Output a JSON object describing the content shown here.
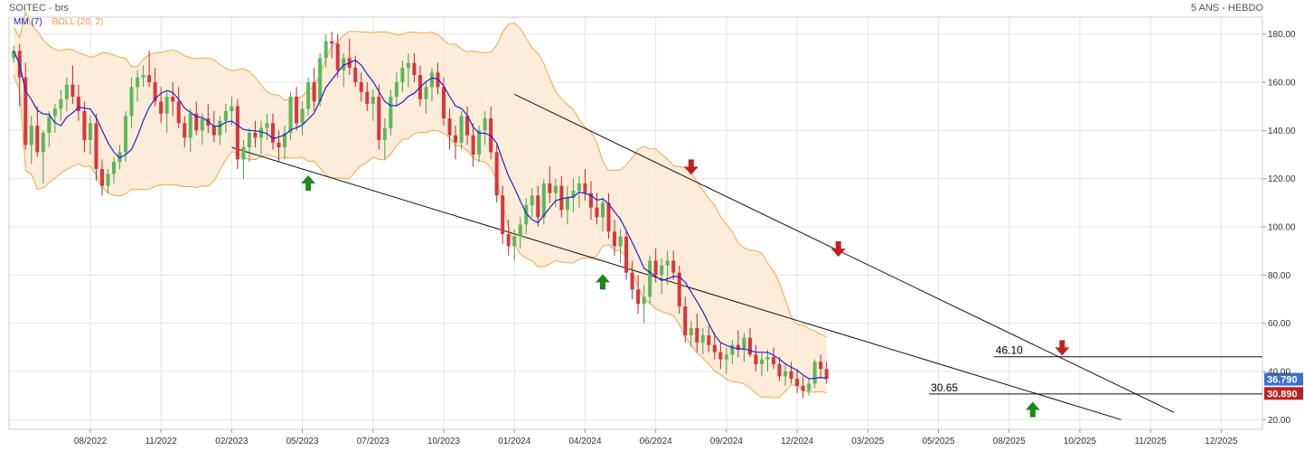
{
  "header": {
    "title": "SOITEC - brs",
    "period": "5 ANS - HEBDO"
  },
  "legend": {
    "ma": "MM (7)",
    "boll": "BOLL (20, 2)"
  },
  "colors": {
    "up": "#5cb85c",
    "down": "#d9363e",
    "ma": "#2020d0",
    "band_fill": "#fde9d4",
    "band_line": "#f0a848",
    "arrow_up": "#1a8a1a",
    "arrow_down": "#c0201e",
    "tag_blue": "#3b6fd6",
    "tag_red": "#c0201e"
  },
  "chart_data": {
    "type": "candlestick",
    "y_ticks": [
      "180.00",
      "160.00",
      "140.00",
      "120.00",
      "100.00",
      "80.00",
      "60.00",
      "40.00",
      "20.00"
    ],
    "y_tick_values": [
      180,
      160,
      140,
      120,
      100,
      80,
      60,
      40,
      20
    ],
    "ylim": [
      16,
      187
    ],
    "x_ticks": [
      "08/2022",
      "11/2022",
      "02/2023",
      "05/2023",
      "07/2023",
      "10/2023",
      "01/2024",
      "04/2024",
      "06/2024",
      "09/2024",
      "12/2024",
      "03/2025",
      "05/2025",
      "08/2025",
      "10/2025",
      "11/2025",
      "12/2025"
    ],
    "x_tick_index": [
      13,
      25,
      37,
      49,
      61,
      73,
      85,
      97,
      109,
      121,
      133,
      145,
      157,
      169,
      181,
      193,
      205
    ],
    "index_range": [
      -0.8,
      212
    ],
    "tags": [
      {
        "label": "36.790",
        "value": 36.79,
        "color": "tag_blue"
      },
      {
        "label": "30.890",
        "value": 30.89,
        "color": "tag_red"
      }
    ],
    "levels": [
      {
        "label": "46.10",
        "value": 46.1,
        "from_index": 171
      },
      {
        "label": "30.65",
        "value": 30.65,
        "from_index": 160
      }
    ],
    "trendlines": [
      {
        "i1": 37,
        "v1": 133,
        "i2": 188,
        "v2": 20
      },
      {
        "i1": 85,
        "v1": 155,
        "i2": 197,
        "v2": 23
      }
    ],
    "arrows": [
      {
        "dir": "up",
        "index": 50,
        "value": 118
      },
      {
        "dir": "up",
        "index": 100,
        "value": 77
      },
      {
        "dir": "down",
        "index": 115,
        "value": 125
      },
      {
        "dir": "down",
        "index": 140,
        "value": 91
      },
      {
        "dir": "up",
        "index": 173,
        "value": 24
      },
      {
        "dir": "down",
        "index": 178,
        "value": 50
      }
    ],
    "candles": [
      [
        170,
        175,
        168,
        173
      ],
      [
        173,
        176,
        150,
        162
      ],
      [
        162,
        168,
        132,
        134
      ],
      [
        134,
        146,
        126,
        142
      ],
      [
        142,
        150,
        129,
        131
      ],
      [
        131,
        140,
        118,
        139
      ],
      [
        139,
        148,
        133,
        146
      ],
      [
        146,
        151,
        139,
        149
      ],
      [
        149,
        157,
        144,
        153
      ],
      [
        153,
        162,
        148,
        159
      ],
      [
        159,
        167,
        151,
        154
      ],
      [
        154,
        159,
        144,
        148
      ],
      [
        148,
        152,
        131,
        136
      ],
      [
        136,
        146,
        130,
        143
      ],
      [
        143,
        147,
        119,
        124
      ],
      [
        124,
        128,
        113,
        117
      ],
      [
        117,
        124,
        114,
        122
      ],
      [
        122,
        129,
        118,
        127
      ],
      [
        127,
        134,
        124,
        131
      ],
      [
        131,
        148,
        127,
        146
      ],
      [
        146,
        162,
        141,
        158
      ],
      [
        158,
        165,
        152,
        162
      ],
      [
        162,
        167,
        158,
        163
      ],
      [
        163,
        173,
        158,
        160
      ],
      [
        160,
        166,
        150,
        152
      ],
      [
        152,
        158,
        143,
        147
      ],
      [
        147,
        156,
        139,
        154
      ],
      [
        154,
        160,
        146,
        152
      ],
      [
        152,
        158,
        141,
        143
      ],
      [
        143,
        146,
        133,
        137
      ],
      [
        137,
        149,
        131,
        147
      ],
      [
        147,
        152,
        138,
        140
      ],
      [
        140,
        147,
        134,
        145
      ],
      [
        145,
        151,
        139,
        142
      ],
      [
        142,
        148,
        135,
        138
      ],
      [
        138,
        146,
        134,
        144
      ],
      [
        144,
        151,
        139,
        148
      ],
      [
        148,
        154,
        142,
        150
      ],
      [
        150,
        153,
        124,
        128
      ],
      [
        128,
        136,
        120,
        133
      ],
      [
        133,
        141,
        127,
        139
      ],
      [
        139,
        144,
        133,
        137
      ],
      [
        137,
        144,
        130,
        141
      ],
      [
        141,
        147,
        136,
        143
      ],
      [
        143,
        147,
        132,
        135
      ],
      [
        135,
        140,
        127,
        133
      ],
      [
        133,
        142,
        128,
        139
      ],
      [
        139,
        156,
        136,
        154
      ],
      [
        154,
        158,
        140,
        143
      ],
      [
        143,
        152,
        138,
        149
      ],
      [
        149,
        162,
        146,
        160
      ],
      [
        160,
        166,
        148,
        152
      ],
      [
        152,
        172,
        150,
        170
      ],
      [
        170,
        180,
        166,
        177
      ],
      [
        177,
        181,
        170,
        176
      ],
      [
        176,
        180,
        162,
        165
      ],
      [
        165,
        172,
        158,
        170
      ],
      [
        170,
        178,
        163,
        166
      ],
      [
        166,
        171,
        158,
        160
      ],
      [
        160,
        164,
        152,
        156
      ],
      [
        156,
        160,
        148,
        151
      ],
      [
        151,
        157,
        144,
        154
      ],
      [
        154,
        159,
        132,
        136
      ],
      [
        136,
        145,
        128,
        141
      ],
      [
        141,
        157,
        138,
        154
      ],
      [
        154,
        164,
        150,
        160
      ],
      [
        160,
        169,
        156,
        166
      ],
      [
        166,
        172,
        158,
        168
      ],
      [
        168,
        172,
        160,
        163
      ],
      [
        163,
        167,
        150,
        153
      ],
      [
        153,
        160,
        147,
        158
      ],
      [
        158,
        166,
        152,
        164
      ],
      [
        164,
        168,
        155,
        158
      ],
      [
        158,
        162,
        142,
        145
      ],
      [
        145,
        149,
        132,
        138
      ],
      [
        138,
        142,
        128,
        135
      ],
      [
        135,
        148,
        132,
        146
      ],
      [
        146,
        150,
        134,
        138
      ],
      [
        138,
        143,
        125,
        130
      ],
      [
        130,
        142,
        127,
        140
      ],
      [
        140,
        148,
        134,
        145
      ],
      [
        145,
        150,
        128,
        131
      ],
      [
        131,
        134,
        110,
        113
      ],
      [
        113,
        117,
        93,
        97
      ],
      [
        97,
        103,
        88,
        92
      ],
      [
        92,
        99,
        86,
        96
      ],
      [
        96,
        104,
        91,
        101
      ],
      [
        101,
        112,
        97,
        109
      ],
      [
        109,
        116,
        104,
        113
      ],
      [
        113,
        117,
        100,
        104
      ],
      [
        104,
        120,
        101,
        118
      ],
      [
        118,
        125,
        110,
        114
      ],
      [
        114,
        120,
        108,
        117
      ],
      [
        117,
        121,
        104,
        107
      ],
      [
        107,
        117,
        101,
        112
      ],
      [
        112,
        120,
        106,
        115
      ],
      [
        115,
        121,
        108,
        118
      ],
      [
        118,
        124,
        111,
        114
      ],
      [
        114,
        119,
        103,
        108
      ],
      [
        108,
        114,
        101,
        104
      ],
      [
        104,
        112,
        98,
        110
      ],
      [
        110,
        114,
        95,
        98
      ],
      [
        98,
        103,
        88,
        92
      ],
      [
        92,
        99,
        85,
        96
      ],
      [
        96,
        98,
        78,
        81
      ],
      [
        81,
        86,
        70,
        74
      ],
      [
        74,
        80,
        64,
        68
      ],
      [
        68,
        76,
        60,
        71
      ],
      [
        71,
        88,
        68,
        86
      ],
      [
        86,
        91,
        77,
        80
      ],
      [
        80,
        87,
        72,
        84
      ],
      [
        84,
        90,
        76,
        86
      ],
      [
        86,
        90,
        78,
        81
      ],
      [
        81,
        84,
        64,
        67
      ],
      [
        67,
        71,
        52,
        55
      ],
      [
        55,
        61,
        50,
        58
      ],
      [
        58,
        64,
        48,
        52
      ],
      [
        52,
        58,
        47,
        55
      ],
      [
        55,
        59,
        48,
        51
      ],
      [
        51,
        56,
        45,
        48
      ],
      [
        48,
        52,
        41,
        45
      ],
      [
        45,
        50,
        39,
        47
      ],
      [
        47,
        53,
        43,
        51
      ],
      [
        51,
        57,
        46,
        49
      ],
      [
        49,
        56,
        44,
        54
      ],
      [
        54,
        58,
        46,
        47
      ],
      [
        47,
        51,
        40,
        43
      ],
      [
        43,
        48,
        38,
        45
      ],
      [
        45,
        49,
        40,
        46
      ],
      [
        46,
        50,
        41,
        43
      ],
      [
        43,
        46,
        36,
        38
      ],
      [
        38,
        43,
        34,
        40
      ],
      [
        40,
        44,
        35,
        37
      ],
      [
        37,
        41,
        31,
        34
      ],
      [
        34,
        38,
        29,
        32
      ],
      [
        32,
        37,
        30,
        35
      ],
      [
        35,
        45,
        33,
        44
      ],
      [
        44,
        47,
        37,
        41
      ],
      [
        41,
        44,
        35,
        37
      ]
    ]
  }
}
